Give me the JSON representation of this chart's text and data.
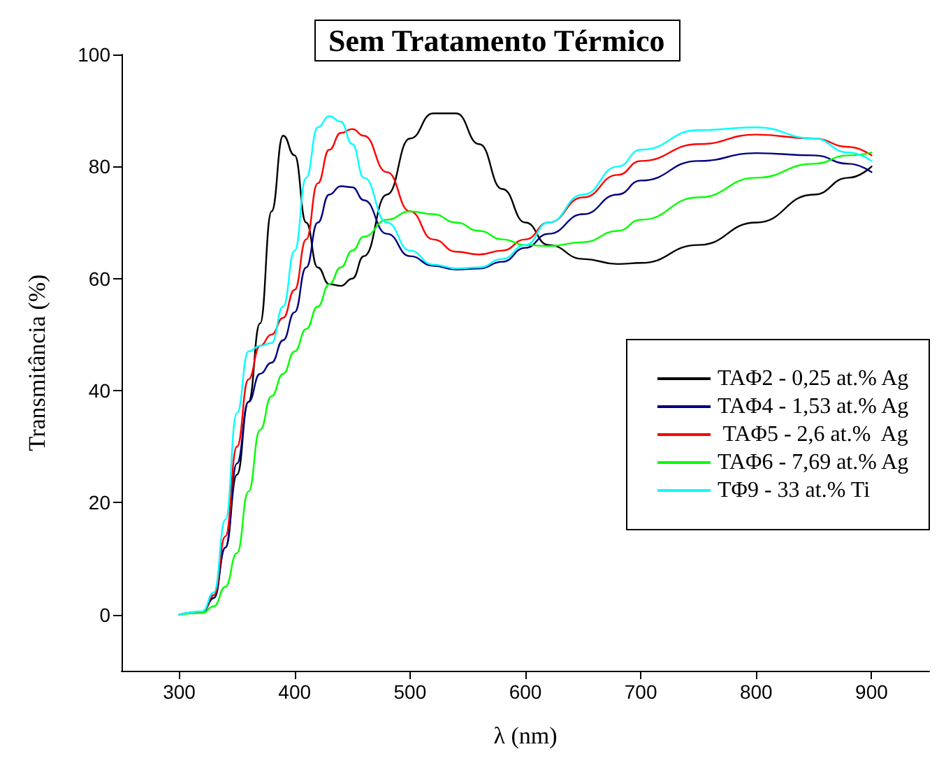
{
  "chart_data": {
    "type": "line",
    "title": "Sem Tratamento Térmico",
    "xlabel": "λ (nm)",
    "ylabel": "Transmitância (%)",
    "x": [
      300,
      320,
      330,
      340,
      350,
      360,
      370,
      380,
      390,
      400,
      410,
      420,
      430,
      440,
      450,
      460,
      480,
      500,
      520,
      540,
      560,
      580,
      600,
      620,
      650,
      680,
      700,
      750,
      800,
      850,
      880,
      900
    ],
    "series": [
      {
        "name": "TAΦ2 - 0,25 at.% Ag",
        "color": "#000000",
        "values": [
          0,
          0.5,
          3,
          12,
          25,
          38,
          52,
          72,
          85.5,
          82,
          70,
          62,
          59,
          58.7,
          60,
          64,
          75,
          85,
          89.5,
          89.5,
          84,
          76,
          70,
          66,
          63.5,
          62.6,
          62.8,
          66,
          70,
          75,
          78,
          80
        ]
      },
      {
        "name": "TAΦ4 - 1,53 at.% Ag",
        "color": "#000080",
        "values": [
          0,
          0.5,
          3,
          12,
          27,
          38,
          43,
          45,
          49,
          54,
          62,
          70,
          75,
          76.5,
          76.3,
          74,
          68,
          64,
          62.3,
          61.6,
          61.8,
          63,
          65.5,
          68,
          71.5,
          75,
          77.5,
          81,
          82.4,
          82,
          80.5,
          79
        ]
      },
      {
        "name": " TAΦ5 - 2,6 at.%  Ag",
        "color": "#ff0000",
        "values": [
          0,
          0.5,
          3.5,
          14,
          30,
          42,
          48,
          50,
          53,
          58,
          67,
          77,
          83,
          86,
          86.7,
          85.5,
          79,
          72,
          67,
          64.8,
          64.3,
          65,
          67,
          70,
          74.5,
          78.5,
          81,
          84,
          85.7,
          85,
          83.5,
          82
        ]
      },
      {
        "name": "TAΦ6 - 7,69 at.% Ag",
        "color": "#00ff00",
        "values": [
          0,
          0.3,
          1.5,
          5,
          11,
          22,
          33,
          39,
          43,
          47,
          51,
          55,
          59,
          62,
          65,
          67.5,
          70.5,
          72,
          71.5,
          70,
          68.5,
          67,
          66,
          65.8,
          66.5,
          68.5,
          70.5,
          74.5,
          78,
          80.5,
          82,
          82.5
        ]
      },
      {
        "name": "TΦ9 - 33 at.% Ti",
        "color": "#00ffff",
        "values": [
          0,
          0.6,
          4,
          17,
          36,
          47,
          48,
          48.5,
          55,
          65,
          78,
          87,
          89,
          88,
          84,
          78,
          70,
          65,
          62.5,
          61.8,
          62,
          63.5,
          66,
          70,
          75,
          80,
          83,
          86.5,
          87,
          85,
          82.5,
          81
        ]
      }
    ],
    "xlim": [
      250,
      950
    ],
    "xticks": [
      300,
      400,
      500,
      600,
      700,
      800,
      900
    ],
    "ylim": [
      -10,
      100
    ],
    "yticks": [
      0,
      20,
      40,
      60,
      80,
      100
    ],
    "grid": false,
    "legend": "right",
    "marker": "none",
    "line_style": "solid"
  }
}
